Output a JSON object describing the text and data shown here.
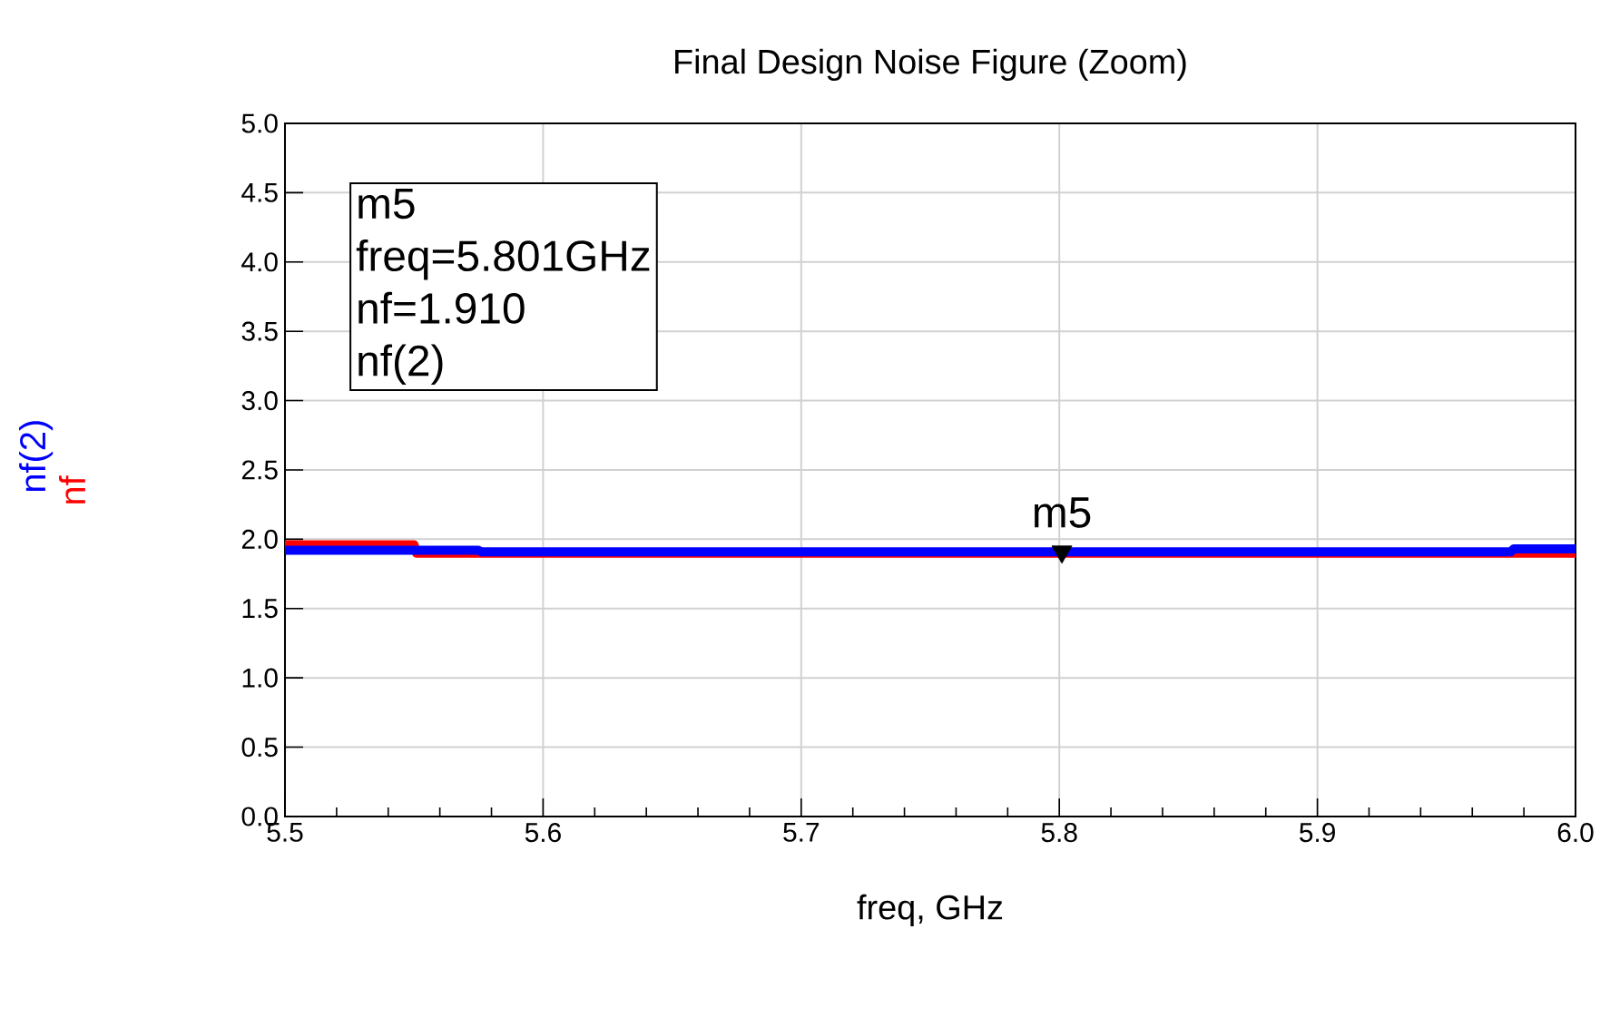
{
  "chart_data": {
    "type": "line",
    "title": "Final Design Noise Figure (Zoom)",
    "xlabel": "freq, GHz",
    "xlim": [
      5.5,
      6.0
    ],
    "xticks": [
      5.5,
      5.6,
      5.7,
      5.8,
      5.9,
      {
        "value": 6.0,
        "label": "6.0"
      }
    ],
    "ylim": [
      0,
      5
    ],
    "yticks": [
      {
        "value": 0,
        "label": "0.0"
      },
      {
        "value": 0.5,
        "label": "0.5"
      },
      {
        "value": 1,
        "label": "1.0"
      },
      {
        "value": 1.5,
        "label": "1.5"
      },
      {
        "value": 2,
        "label": "2.0"
      },
      {
        "value": 2.5,
        "label": "2.5"
      },
      {
        "value": 3,
        "label": "3.0"
      },
      {
        "value": 3.5,
        "label": "3.5"
      },
      {
        "value": 4,
        "label": "4.0"
      },
      {
        "value": 4.5,
        "label": "4.5"
      },
      {
        "value": 5,
        "label": "5.0"
      }
    ],
    "grid": true,
    "marker": "none",
    "line_style": "solid",
    "series": [
      {
        "name": "nf",
        "color": "#ff0000",
        "x": [
          5.5,
          5.55,
          5.551,
          6.0
        ],
        "values": [
          1.96,
          1.96,
          1.9,
          1.9
        ]
      },
      {
        "name": "nf(2)",
        "color": "#0000ff",
        "x": [
          5.5,
          5.575,
          5.576,
          5.975,
          5.976,
          6.0
        ],
        "values": [
          1.92,
          1.92,
          1.91,
          1.91,
          1.93,
          1.93
        ]
      },
      {
        "type": "scatter",
        "marker": "triangle",
        "color": "#000000",
        "x": [
          5.801
        ],
        "values": [
          1.91
        ]
      }
    ],
    "annotations": [
      {
        "text": "m5",
        "x": 5.801,
        "y": 1.91
      },
      "m5",
      "freq=5.801GHz",
      "nf=1.910",
      "nf(2)"
    ]
  }
}
